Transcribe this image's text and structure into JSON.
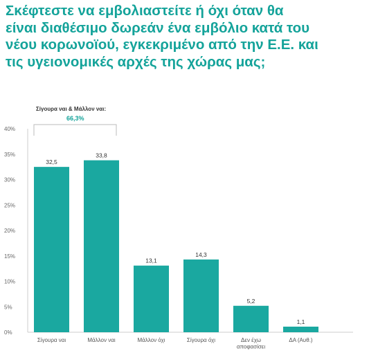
{
  "title_lines": [
    "Σκέφτεστε να εμβολιαστείτε ή όχι όταν θα",
    "είναι διαθέσιμο δωρεάν ένα εμβόλιο κατά του",
    "νέου κορωνοϊού, εγκεκριμένο από την Ε.Ε. και",
    "τις υγειονομικές αρχές της χώρας μας;"
  ],
  "annotation": {
    "label": "Σίγουρα ναι & Μάλλον ναι:",
    "value": "66,3%"
  },
  "colors": {
    "accent": "#14a39a",
    "bar": "#1aa8a0",
    "grid": "#e0e0e0",
    "axis": "#cccccc"
  },
  "chart_data": {
    "type": "bar",
    "categories": [
      [
        "Σίγουρα ναι"
      ],
      [
        "Μάλλον ναι"
      ],
      [
        "Μάλλον όχι"
      ],
      [
        "Σίγουρα όχι"
      ],
      [
        "Δεν έχω",
        "αποφασίσει"
      ],
      [
        "ΔΑ (Αυθ.)"
      ]
    ],
    "values": [
      32.5,
      33.8,
      13.1,
      14.3,
      5.2,
      1.1
    ],
    "value_labels": [
      "32,5",
      "33,8",
      "13,1",
      "14,3",
      "5,2",
      "1,1"
    ],
    "ylim": [
      0,
      40
    ],
    "yticks": [
      0,
      5,
      10,
      15,
      20,
      25,
      30,
      35,
      40
    ],
    "ytick_labels": [
      "0%",
      "5%",
      "10%",
      "15%",
      "20%",
      "25%",
      "30%",
      "35%",
      "40%"
    ],
    "grid": false,
    "legend": "none"
  }
}
